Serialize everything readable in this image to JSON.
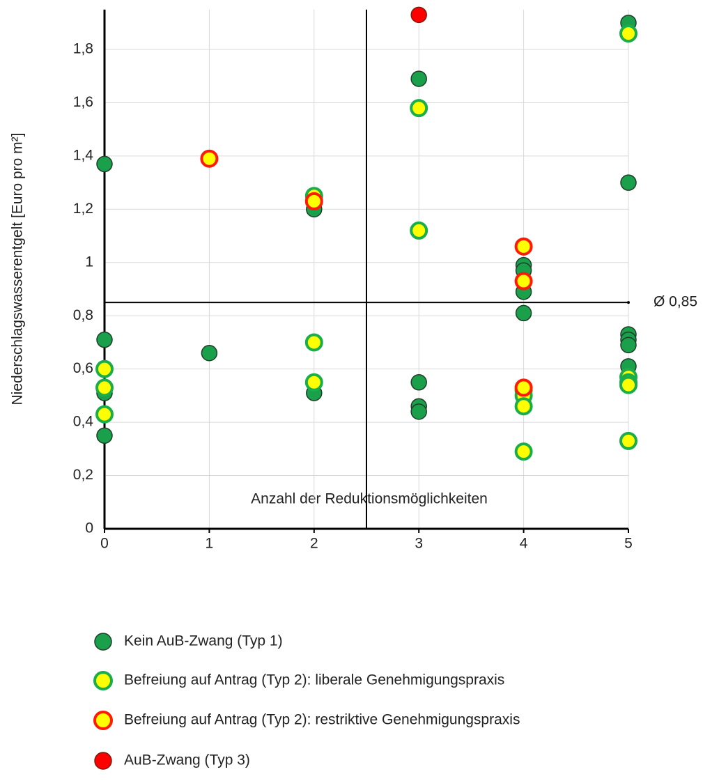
{
  "chart_data": {
    "type": "scatter",
    "x_label": "Anzahl der Reduktionsmöglichkeiten",
    "y_label": "Niederschlagswasserentgelt [Euro pro m²]",
    "xlim": [
      0,
      5
    ],
    "ylim": [
      0,
      1.95
    ],
    "xticks": [
      0,
      1,
      2,
      3,
      4,
      5
    ],
    "yticks": [
      0,
      {
        "value": 0.2,
        "label": "0,2"
      },
      {
        "value": 0.4,
        "label": "0,4"
      },
      {
        "value": 0.6,
        "label": "0,6"
      },
      {
        "value": 0.8,
        "label": "0,8"
      },
      1,
      {
        "value": 1.2,
        "label": "1,2"
      },
      {
        "value": 1.4,
        "label": "1,4"
      },
      {
        "value": 1.6,
        "label": "1,6"
      },
      {
        "value": 1.8,
        "label": "1,8"
      }
    ],
    "grid": true,
    "mean": {
      "value": 0.85,
      "label": "Ø 0,85"
    },
    "x_divider": 2.5,
    "series": [
      {
        "name": "Kein AuB-Zwang (Typ 1)",
        "color": "#1a9f4b",
        "edgecolor": "#1f3d2a",
        "x": [
          0,
          0,
          0,
          0,
          1,
          2,
          2,
          3,
          3,
          3,
          3,
          4,
          4,
          4,
          4,
          5,
          5,
          5,
          5,
          5,
          5
        ],
        "values": [
          1.37,
          0.71,
          0.51,
          0.35,
          0.66,
          1.2,
          0.51,
          1.69,
          0.55,
          0.46,
          0.44,
          0.99,
          0.97,
          0.89,
          0.81,
          1.9,
          1.3,
          0.73,
          0.71,
          0.69,
          0.61
        ]
      },
      {
        "name": "Befreiung auf Antrag (Typ 2): liberale Genehmigungspraxis",
        "color": "#ffff00",
        "edgecolor": "#1aae4b",
        "x": [
          0,
          0,
          0,
          2,
          2,
          2,
          3,
          3,
          4,
          4,
          4,
          4,
          5,
          5,
          5,
          5,
          5
        ],
        "values": [
          0.6,
          0.53,
          0.43,
          1.25,
          0.7,
          0.55,
          1.58,
          1.12,
          0.52,
          0.5,
          0.46,
          0.29,
          1.86,
          0.57,
          0.55,
          0.54,
          0.33
        ]
      },
      {
        "name": "Befreiung auf Antrag (Typ 2): restriktive Genehmigungspraxis",
        "color": "#ffff00",
        "edgecolor": "#ff1a00",
        "x": [
          1,
          2,
          4,
          4,
          4
        ],
        "values": [
          1.39,
          1.23,
          1.06,
          0.93,
          0.53
        ]
      },
      {
        "name": "AuB-Zwang (Typ 3)",
        "color": "#ff0000",
        "edgecolor": "#7a1a10",
        "x": [
          3
        ],
        "values": [
          1.93
        ]
      }
    ]
  }
}
